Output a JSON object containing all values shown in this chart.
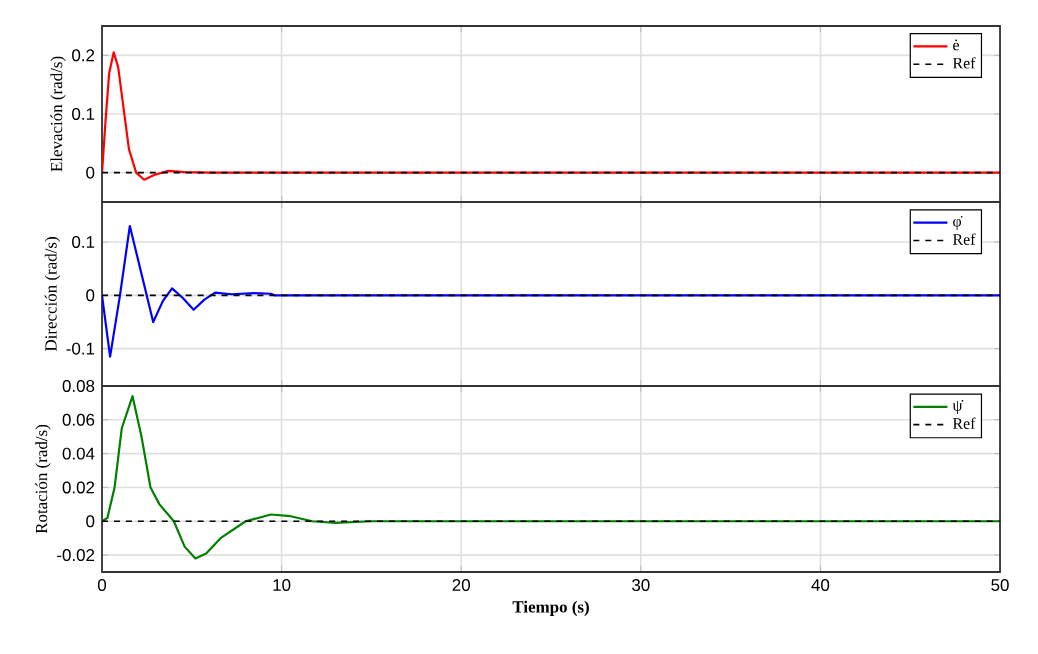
{
  "chart_data": [
    {
      "type": "line",
      "ylabel": "Elevación (rad/s)",
      "xlim": [
        0,
        50
      ],
      "ylim": [
        -0.05,
        0.25
      ],
      "xticks": [
        0,
        10,
        20,
        30,
        40,
        50
      ],
      "yticks": [
        0,
        0.1,
        0.2
      ],
      "tick_labels": "y",
      "grid": true,
      "legend": "top right",
      "series": [
        {
          "name": "ė",
          "color": "#ff0000",
          "line_style": "solid",
          "x": [
            0,
            0.2,
            0.4,
            0.65,
            0.9,
            1.2,
            1.5,
            1.9,
            2.35,
            2.9,
            3.7,
            4.6,
            6,
            50
          ],
          "values": [
            0,
            0.09,
            0.17,
            0.205,
            0.18,
            0.11,
            0.04,
            0,
            -0.012,
            -0.004,
            0.003,
            0.001,
            0,
            0
          ]
        },
        {
          "name": "Ref",
          "color": "#000000",
          "line_style": "dashed",
          "x": [
            0,
            50
          ],
          "values": [
            0,
            0
          ]
        }
      ]
    },
    {
      "type": "line",
      "ylabel": "Dirección (rad/s)",
      "xlim": [
        0,
        50
      ],
      "ylim": [
        -0.17,
        0.175
      ],
      "xticks": [
        0,
        10,
        20,
        30,
        40,
        50
      ],
      "yticks": [
        -0.1,
        0,
        0.1
      ],
      "tick_labels": "y",
      "grid": true,
      "legend": "top right",
      "series": [
        {
          "name": "φ̇",
          "color": "#0000ff",
          "line_style": "solid",
          "x": [
            0,
            0.45,
            1.0,
            1.55,
            2.2,
            2.85,
            3.4,
            3.9,
            4.5,
            5.1,
            5.7,
            6.3,
            7.2,
            8.5,
            9.4,
            9.6,
            50
          ],
          "values": [
            0,
            -0.115,
            0,
            0.13,
            0.04,
            -0.05,
            -0.01,
            0.013,
            -0.005,
            -0.027,
            -0.008,
            0.005,
            0.002,
            0.004,
            0.003,
            0,
            0
          ]
        },
        {
          "name": "Ref",
          "color": "#000000",
          "line_style": "dashed",
          "x": [
            0,
            50
          ],
          "values": [
            0,
            0
          ]
        }
      ]
    },
    {
      "type": "line",
      "ylabel": "Rotación (rad/s)",
      "xlabel": "Tiempo (s)",
      "xlim": [
        0,
        50
      ],
      "ylim": [
        -0.03,
        0.08
      ],
      "xticks": [
        0,
        10,
        20,
        30,
        40,
        50
      ],
      "yticks": [
        -0.02,
        0,
        0.02,
        0.04,
        0.06,
        0.08
      ],
      "grid": true,
      "legend": "top right",
      "series": [
        {
          "name": "ψ̇",
          "color": "#008000",
          "line_style": "solid",
          "x": [
            0,
            0.3,
            0.7,
            1.1,
            1.7,
            2.2,
            2.7,
            3.2,
            4,
            4.6,
            5.2,
            5.8,
            6.6,
            8,
            9.4,
            10.5,
            11.7,
            13,
            15,
            50
          ],
          "values": [
            0,
            0.002,
            0.02,
            0.055,
            0.074,
            0.05,
            0.02,
            0.01,
            0,
            -0.015,
            -0.022,
            -0.019,
            -0.01,
            0,
            0.004,
            0.003,
            0,
            -0.001,
            0,
            0
          ]
        },
        {
          "name": "Ref",
          "color": "#000000",
          "line_style": "dashed",
          "x": [
            0,
            50
          ],
          "values": [
            0,
            0
          ]
        }
      ]
    }
  ]
}
